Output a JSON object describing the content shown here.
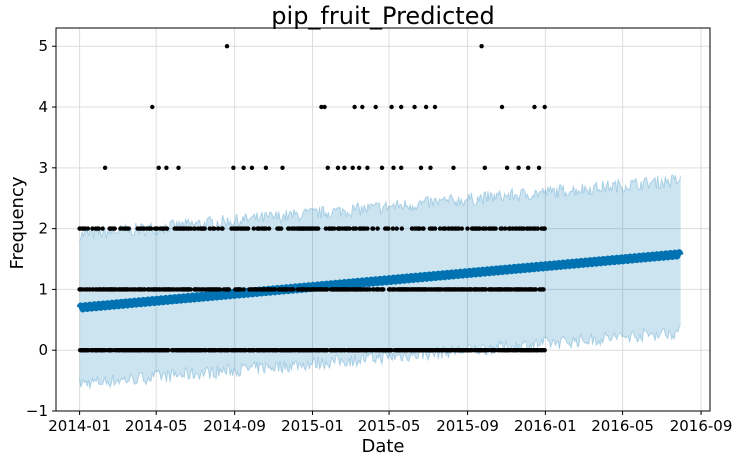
{
  "chart_data": {
    "type": "line",
    "title": "pip_fruit_Predicted",
    "xlabel": "Date",
    "ylabel": "Frequency",
    "xlim": [
      "2013-11-25",
      "2016-09-15"
    ],
    "ylim": [
      -1,
      5.3
    ],
    "x_ticks": [
      "2014-01",
      "2014-05",
      "2014-09",
      "2015-01",
      "2015-05",
      "2015-09",
      "2016-01",
      "2016-05",
      "2016-09"
    ],
    "y_ticks": [
      -1,
      0,
      1,
      2,
      3,
      4,
      5
    ],
    "grid": true,
    "colors": {
      "forecast": "#0072B2",
      "interval": "#0072B2",
      "observed": "#000000"
    },
    "series": [
      {
        "kind": "forecast",
        "points": [
          {
            "x": "2014-01-01",
            "y": 0.7
          },
          {
            "x": "2016-07-31",
            "y": 1.58
          }
        ]
      },
      {
        "kind": "uncertainty_interval",
        "lower": [
          {
            "x": "2014-01-01",
            "y": -0.55
          },
          {
            "x": "2016-07-31",
            "y": 0.3
          }
        ],
        "upper": [
          {
            "x": "2014-01-01",
            "y": 1.9
          },
          {
            "x": "2016-07-31",
            "y": 2.8
          }
        ]
      },
      {
        "kind": "observed",
        "range": [
          "2014-01-01",
          "2015-12-31"
        ],
        "points": [
          {
            "x": "2014-08-20",
            "y": 5
          },
          {
            "x": "2015-09-23",
            "y": 5
          },
          {
            "x": "2014-04-25",
            "y": 4
          },
          {
            "x": "2015-01-15",
            "y": 4
          },
          {
            "x": "2015-01-20",
            "y": 4
          },
          {
            "x": "2015-03-08",
            "y": 4
          },
          {
            "x": "2015-03-20",
            "y": 4
          },
          {
            "x": "2015-04-10",
            "y": 4
          },
          {
            "x": "2015-05-05",
            "y": 4
          },
          {
            "x": "2015-05-20",
            "y": 4
          },
          {
            "x": "2015-06-10",
            "y": 4
          },
          {
            "x": "2015-06-28",
            "y": 4
          },
          {
            "x": "2015-07-12",
            "y": 4
          },
          {
            "x": "2015-10-25",
            "y": 4
          },
          {
            "x": "2015-12-15",
            "y": 4
          },
          {
            "x": "2015-12-31",
            "y": 4
          },
          {
            "x": "2014-02-10",
            "y": 3
          },
          {
            "x": "2014-05-05",
            "y": 3
          },
          {
            "x": "2014-05-17",
            "y": 3
          },
          {
            "x": "2014-06-05",
            "y": 3
          },
          {
            "x": "2014-08-30",
            "y": 3
          },
          {
            "x": "2014-09-15",
            "y": 3
          },
          {
            "x": "2014-09-28",
            "y": 3
          },
          {
            "x": "2014-10-20",
            "y": 3
          },
          {
            "x": "2014-11-15",
            "y": 3
          },
          {
            "x": "2015-01-25",
            "y": 3
          },
          {
            "x": "2015-02-10",
            "y": 3
          },
          {
            "x": "2015-02-20",
            "y": 3
          },
          {
            "x": "2015-03-05",
            "y": 3
          },
          {
            "x": "2015-03-15",
            "y": 3
          },
          {
            "x": "2015-03-28",
            "y": 3
          },
          {
            "x": "2015-04-20",
            "y": 3
          },
          {
            "x": "2015-05-08",
            "y": 3
          },
          {
            "x": "2015-05-20",
            "y": 3
          },
          {
            "x": "2015-06-20",
            "y": 3
          },
          {
            "x": "2015-07-05",
            "y": 3
          },
          {
            "x": "2015-08-10",
            "y": 3
          },
          {
            "x": "2015-09-28",
            "y": 3
          },
          {
            "x": "2015-11-02",
            "y": 3
          },
          {
            "x": "2015-11-20",
            "y": 3
          },
          {
            "x": "2015-12-05",
            "y": 3
          },
          {
            "x": "2015-12-22",
            "y": 3
          }
        ]
      }
    ]
  }
}
